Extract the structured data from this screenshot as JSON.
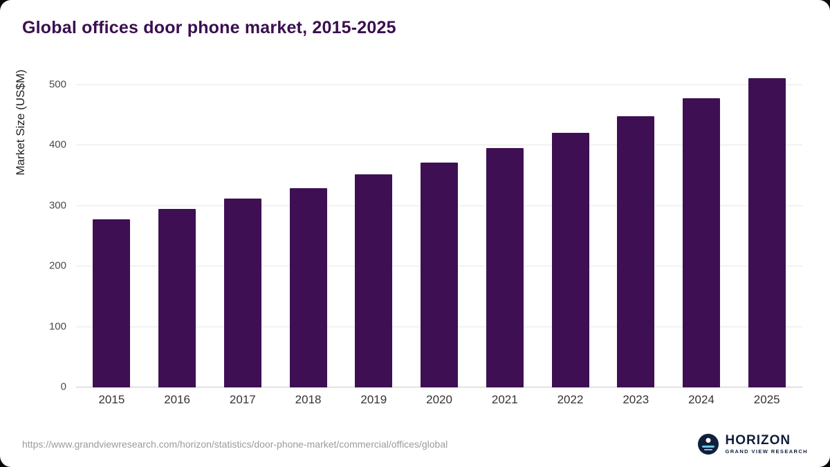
{
  "title": "Global offices door phone market, 2015-2025",
  "source_url": "https://www.grandviewresearch.com/horizon/statistics/door-phone-market/commercial/offices/global",
  "logo": {
    "name": "HORIZON",
    "subtitle": "GRAND VIEW RESEARCH"
  },
  "colors": {
    "bar": "#3e1053",
    "title": "#3a0e4f",
    "gridline": "#e7e7e7"
  },
  "chart_data": {
    "type": "bar",
    "title": "Global offices door phone market, 2015-2025",
    "categories": [
      "2015",
      "2016",
      "2017",
      "2018",
      "2019",
      "2020",
      "2021",
      "2022",
      "2023",
      "2024",
      "2025"
    ],
    "values": [
      278,
      295,
      312,
      330,
      352,
      372,
      396,
      421,
      448,
      478,
      511
    ],
    "xlabel": "",
    "ylabel": "Market Size (US$M)",
    "ylim": [
      0,
      500
    ],
    "yticks": [
      0,
      100,
      200,
      300,
      400,
      500
    ],
    "grid": true,
    "legend": "none"
  }
}
